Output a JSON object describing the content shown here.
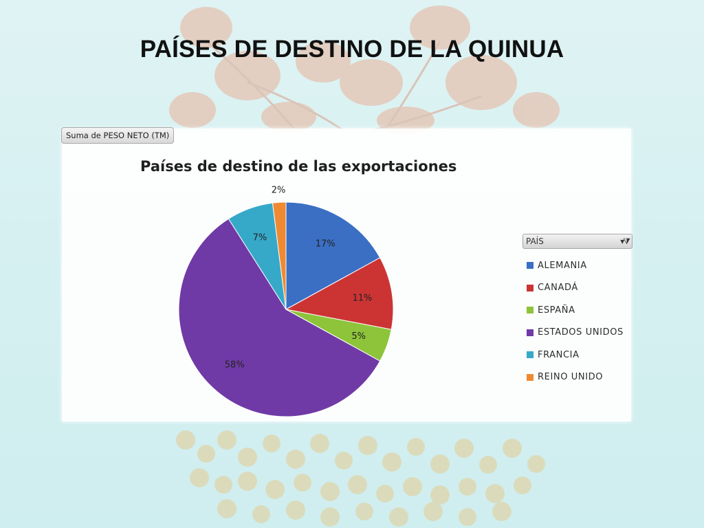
{
  "slide": {
    "title": "PAÍSES DE DESTINO DE LA QUINUA"
  },
  "pivot": {
    "field_button": "Suma de PESO NETO (TM)",
    "legend_field": "PAÍS"
  },
  "colors": {
    "ALEMANIA": "#3a6fc4",
    "CANADÁ": "#cc3434",
    "ESPAÑA": "#8dc43a",
    "ESTADOS UNIDOS": "#6f3aa6",
    "FRANCIA": "#36a9c9",
    "REINO UNIDO": "#ef8a33"
  },
  "chart_data": {
    "type": "pie",
    "title": "Países de destino de las exportaciones",
    "categories": [
      "ALEMANIA",
      "CANADÁ",
      "ESPAÑA",
      "ESTADOS UNIDOS",
      "FRANCIA",
      "REINO UNIDO"
    ],
    "values": [
      17,
      11,
      5,
      58,
      7,
      2
    ],
    "labels": [
      "17%",
      "11%",
      "5%",
      "58%",
      "7%",
      "2%"
    ],
    "unit": "%",
    "legend_position": "right",
    "start_angle": "12 o'clock",
    "direction": "clockwise"
  }
}
